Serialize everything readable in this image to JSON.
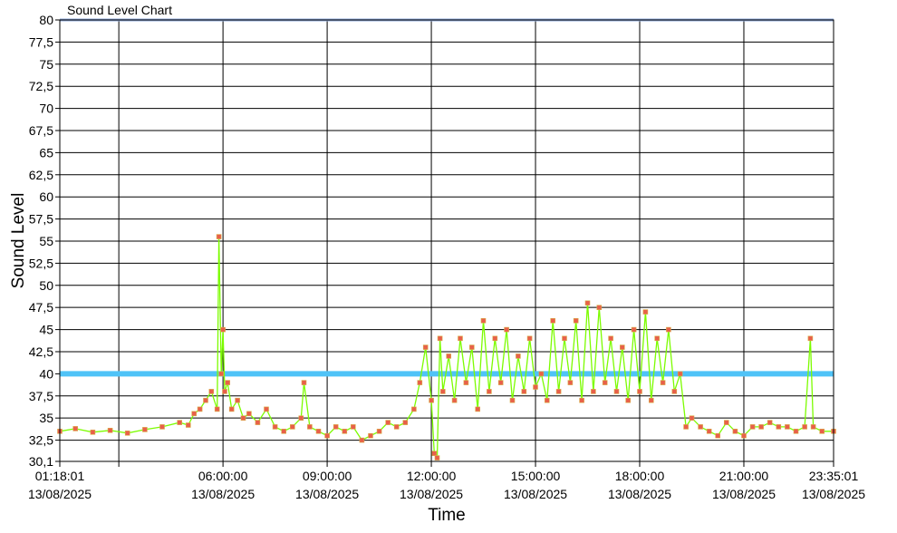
{
  "chart_data": {
    "type": "line",
    "title": "Sound Level Chart",
    "xlabel": "Time",
    "ylabel": "Sound Level",
    "ylim": [
      30.1,
      80
    ],
    "xlim": [
      "2025-08-13T01:18:01",
      "2025-08-13T23:35:01"
    ],
    "y_ticks": [
      "30,1",
      "32,5",
      "35",
      "37,5",
      "40",
      "42,5",
      "45",
      "47,5",
      "50",
      "52,5",
      "55",
      "57,5",
      "60",
      "62,5",
      "65",
      "67,5",
      "70",
      "72,5",
      "75",
      "77,5",
      "80"
    ],
    "x_ticks": [
      {
        "time": "2025-08-13T01:18:01",
        "label_time": "01:18:01",
        "label_date": "13/08/2025"
      },
      {
        "time": "2025-08-13T03:00:00",
        "label_time": "",
        "label_date": ""
      },
      {
        "time": "2025-08-13T06:00:00",
        "label_time": "06:00:00",
        "label_date": "13/08/2025"
      },
      {
        "time": "2025-08-13T09:00:00",
        "label_time": "09:00:00",
        "label_date": "13/08/2025"
      },
      {
        "time": "2025-08-13T12:00:00",
        "label_time": "12:00:00",
        "label_date": "13/08/2025"
      },
      {
        "time": "2025-08-13T15:00:00",
        "label_time": "15:00:00",
        "label_date": "13/08/2025"
      },
      {
        "time": "2025-08-13T18:00:00",
        "label_time": "18:00:00",
        "label_date": "13/08/2025"
      },
      {
        "time": "2025-08-13T21:00:00",
        "label_time": "21:00:00",
        "label_date": "13/08/2025"
      },
      {
        "time": "2025-08-13T23:35:01",
        "label_time": "23:35:01",
        "label_date": "13/08/2025"
      }
    ],
    "grid": true,
    "reference_lines": [
      {
        "y": 40,
        "color": "#4fc3f7"
      },
      {
        "y": 80,
        "color": "#8ea9d8"
      }
    ],
    "series": [
      {
        "line_color": "#7cfc00",
        "marker_color": "#e8604a",
        "marker_stroke": "#d9b04a",
        "x": [
          "01:18",
          "01:45",
          "02:15",
          "02:45",
          "03:15",
          "03:45",
          "04:15",
          "04:45",
          "05:00",
          "05:10",
          "05:20",
          "05:30",
          "05:40",
          "05:50",
          "05:53",
          "05:57",
          "06:00",
          "06:03",
          "06:08",
          "06:15",
          "06:25",
          "06:35",
          "06:45",
          "07:00",
          "07:15",
          "07:30",
          "07:45",
          "08:00",
          "08:15",
          "08:20",
          "08:30",
          "08:45",
          "09:00",
          "09:15",
          "09:30",
          "09:45",
          "10:00",
          "10:15",
          "10:30",
          "10:45",
          "11:00",
          "11:15",
          "11:30",
          "11:40",
          "11:50",
          "12:00",
          "12:05",
          "12:10",
          "12:15",
          "12:20",
          "12:30",
          "12:40",
          "12:50",
          "13:00",
          "13:10",
          "13:20",
          "13:30",
          "13:40",
          "13:50",
          "14:00",
          "14:10",
          "14:20",
          "14:30",
          "14:40",
          "14:50",
          "15:00",
          "15:10",
          "15:20",
          "15:30",
          "15:40",
          "15:50",
          "16:00",
          "16:10",
          "16:20",
          "16:30",
          "16:40",
          "16:50",
          "17:00",
          "17:10",
          "17:20",
          "17:30",
          "17:40",
          "17:50",
          "18:00",
          "18:10",
          "18:20",
          "18:30",
          "18:40",
          "18:50",
          "19:00",
          "19:10",
          "19:20",
          "19:30",
          "19:45",
          "20:00",
          "20:15",
          "20:30",
          "20:45",
          "21:00",
          "21:15",
          "21:30",
          "21:45",
          "22:00",
          "22:15",
          "22:30",
          "22:45",
          "22:55",
          "23:00",
          "23:15",
          "23:35"
        ],
        "y": [
          33.5,
          33.8,
          33.4,
          33.6,
          33.3,
          33.7,
          34.0,
          34.5,
          34.2,
          35.5,
          36.0,
          37.0,
          38.0,
          36.0,
          55.5,
          40.0,
          45.0,
          38.0,
          39.0,
          36.0,
          37.0,
          35.0,
          35.5,
          34.5,
          36.0,
          34.0,
          33.5,
          34.0,
          35.0,
          39.0,
          34.0,
          33.5,
          33.0,
          34.0,
          33.5,
          34.0,
          32.5,
          33.0,
          33.5,
          34.5,
          34.0,
          34.5,
          36.0,
          39.0,
          43.0,
          37.0,
          31.0,
          30.5,
          44.0,
          38.0,
          42.0,
          37.0,
          44.0,
          39.0,
          43.0,
          36.0,
          46.0,
          38.0,
          44.0,
          39.0,
          45.0,
          37.0,
          42.0,
          38.0,
          44.0,
          38.5,
          40.0,
          37.0,
          46.0,
          38.0,
          44.0,
          39.0,
          46.0,
          37.0,
          48.0,
          38.0,
          47.5,
          39.0,
          44.0,
          38.0,
          43.0,
          37.0,
          45.0,
          38.0,
          47.0,
          37.0,
          44.0,
          39.0,
          45.0,
          38.0,
          40.0,
          34.0,
          35.0,
          34.0,
          33.5,
          33.0,
          34.5,
          33.5,
          33.0,
          34.0,
          34.0,
          34.5,
          34.0,
          34.0,
          33.5,
          34.0,
          44.0,
          34.0,
          33.5,
          33.5
        ]
      }
    ]
  }
}
